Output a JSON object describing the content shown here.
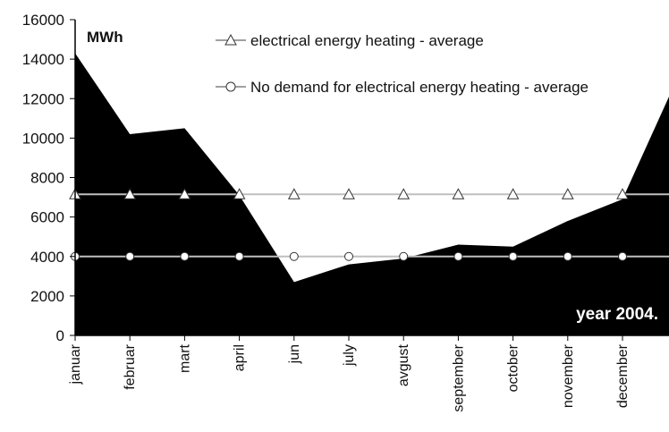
{
  "chart_data": {
    "type": "area",
    "unit_label": "MWh",
    "annotation": "year 2004.",
    "ylim": [
      0,
      16000
    ],
    "yticks": [
      0,
      2000,
      4000,
      6000,
      8000,
      10000,
      12000,
      14000,
      16000
    ],
    "categories": [
      "januar",
      "februar",
      "mart",
      "april",
      "jun",
      "july",
      "avgust",
      "september",
      "october",
      "november",
      "december"
    ],
    "area": {
      "color": "#000000",
      "values": [
        14300,
        10200,
        10500,
        7100,
        2700,
        3600,
        3900,
        4600,
        4500,
        5800,
        6900
      ],
      "end_value": 12100
    },
    "series": [
      {
        "name": "electrical energy heating - average",
        "marker": "triangle",
        "color": "#bfbfbf",
        "values": [
          7150,
          7150,
          7150,
          7150,
          7150,
          7150,
          7150,
          7150,
          7150,
          7150,
          7150
        ]
      },
      {
        "name": "No demand for electrical energy heating - average",
        "marker": "circle",
        "color": "#bfbfbf",
        "values": [
          4000,
          4000,
          4000,
          4000,
          4000,
          4000,
          4000,
          4000,
          4000,
          4000,
          4000
        ]
      }
    ],
    "legend_position": "top-right",
    "grid": false
  }
}
